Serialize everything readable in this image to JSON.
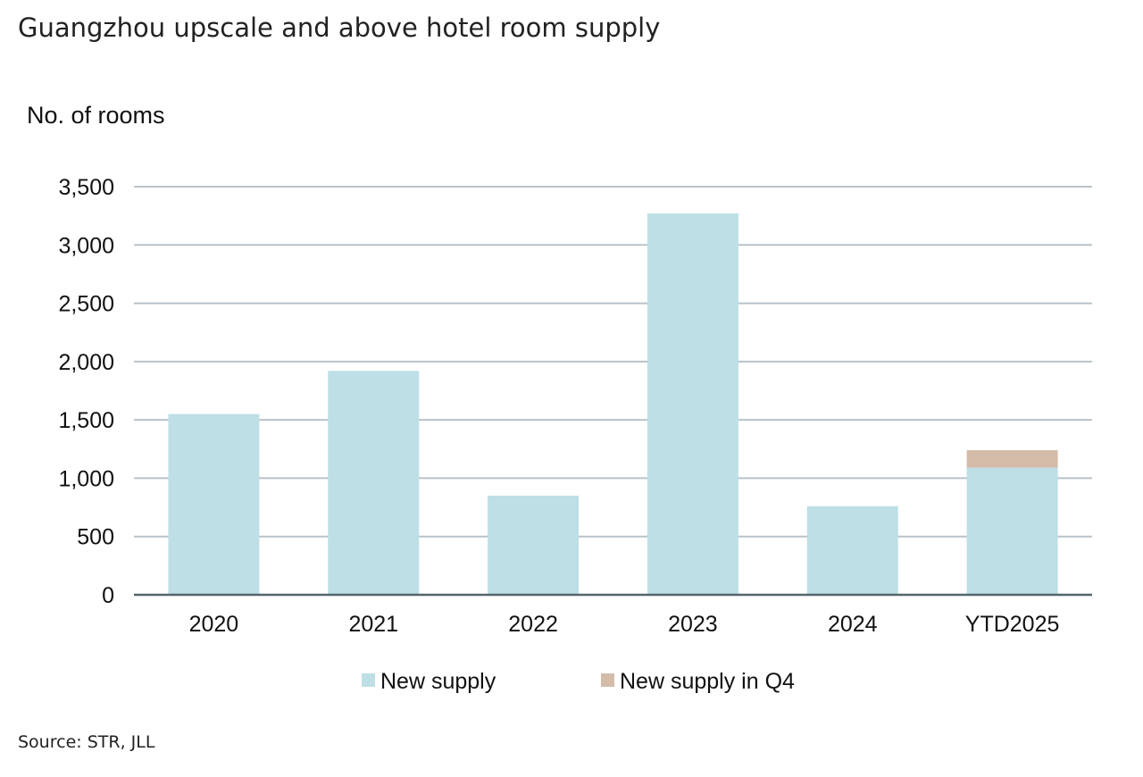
{
  "chart_data": {
    "type": "bar",
    "stacked": true,
    "title": "Guangzhou upscale and above hotel room supply",
    "ylabel": "No. of rooms",
    "xlabel": "",
    "categories": [
      "2020",
      "2021",
      "2022",
      "2023",
      "2024",
      "YTD2025"
    ],
    "series": [
      {
        "name": "New supply",
        "color": "#bddfe5",
        "values": [
          1550,
          1920,
          850,
          3270,
          760,
          1090
        ]
      },
      {
        "name": "New supply in Q4",
        "color": "#d4bca9",
        "values": [
          0,
          0,
          0,
          0,
          0,
          150
        ]
      }
    ],
    "ylim": [
      0,
      3500
    ],
    "yticks": [
      0,
      500,
      1000,
      1500,
      2000,
      2500,
      3000,
      3500
    ],
    "ytick_labels": [
      "0",
      "500",
      "1,000",
      "1,500",
      "2,000",
      "2,500",
      "3,000",
      "3,500"
    ],
    "grid": true,
    "legend_position": "bottom",
    "source": "Source: STR, JLL"
  }
}
